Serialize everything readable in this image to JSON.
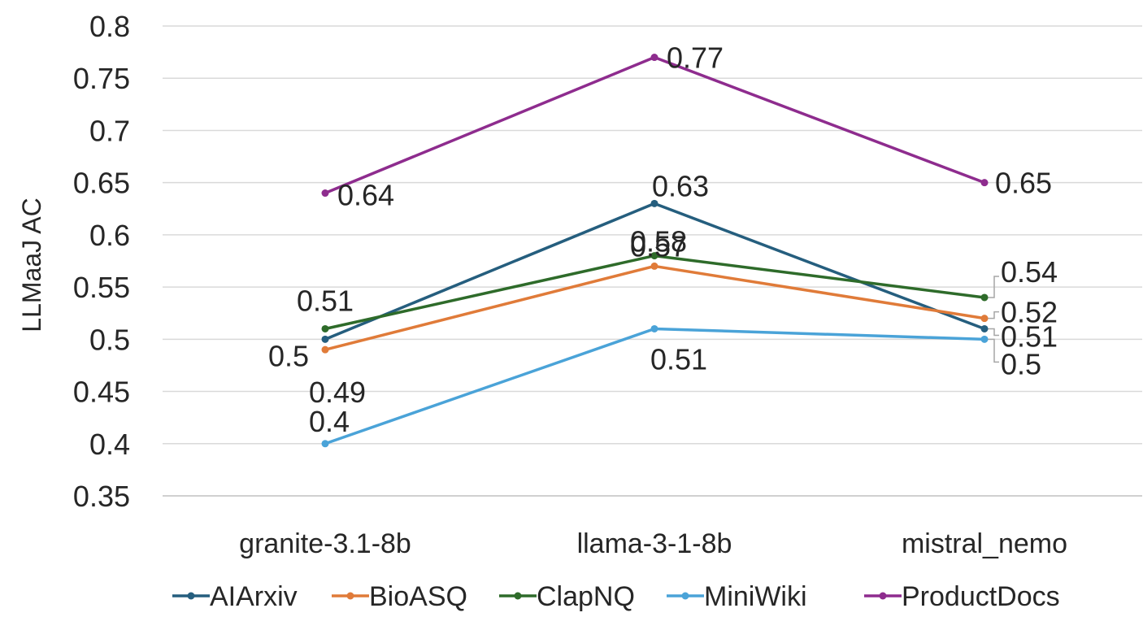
{
  "chart_data": {
    "type": "line",
    "title": "",
    "xlabel": "",
    "ylabel": "LLMaaJ AC",
    "ylim": [
      0.35,
      0.8
    ],
    "yticks": [
      "0.35",
      "0.4",
      "0.45",
      "0.5",
      "0.55",
      "0.6",
      "0.65",
      "0.7",
      "0.75",
      "0.8"
    ],
    "grid": true,
    "legend": "bottom",
    "categories": [
      "granite-3.1-8b",
      "llama-3-1-8b",
      "mistral_nemo"
    ],
    "series": [
      {
        "name": "AIArxiv",
        "color": "#255e7e",
        "values": [
          0.5,
          0.63,
          0.51
        ],
        "labels": [
          "0.5",
          "0.63",
          "0.51"
        ]
      },
      {
        "name": "BioASQ",
        "color": "#e07b39",
        "values": [
          0.49,
          0.57,
          0.52
        ],
        "labels": [
          "0.49",
          "0.57",
          "0.52"
        ]
      },
      {
        "name": "ClapNQ",
        "color": "#2e6b2a",
        "values": [
          0.51,
          0.58,
          0.54
        ],
        "labels": [
          "0.51",
          "0.58",
          "0.54"
        ]
      },
      {
        "name": "MiniWiki",
        "color": "#4aa3d8",
        "values": [
          0.4,
          0.51,
          0.5
        ],
        "labels": [
          "0.4",
          "0.51",
          "0.5"
        ]
      },
      {
        "name": "ProductDocs",
        "color": "#8e2c8e",
        "values": [
          0.64,
          0.77,
          0.65
        ],
        "labels": [
          "0.64",
          "0.77",
          "0.65"
        ]
      }
    ]
  }
}
